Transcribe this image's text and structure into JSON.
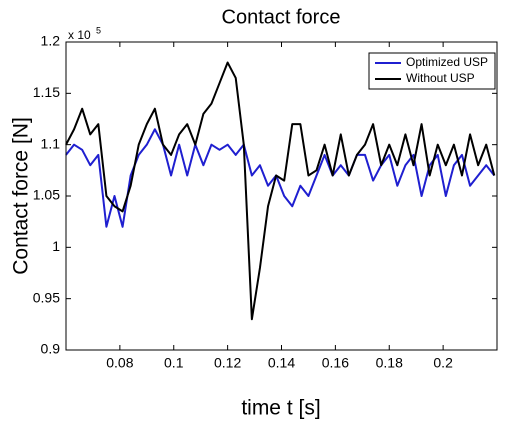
{
  "chart_data": {
    "type": "line",
    "title": "Contact force",
    "xlabel": "time t [s]",
    "ylabel": "Contact force [N]",
    "y_multiplier": "x 10",
    "y_multiplier_exponent": "5",
    "x": [
      0.06,
      0.063,
      0.066,
      0.069,
      0.072,
      0.075,
      0.078,
      0.081,
      0.084,
      0.087,
      0.09,
      0.093,
      0.096,
      0.099,
      0.102,
      0.105,
      0.108,
      0.111,
      0.114,
      0.117,
      0.12,
      0.123,
      0.126,
      0.129,
      0.132,
      0.135,
      0.138,
      0.141,
      0.144,
      0.147,
      0.15,
      0.153,
      0.156,
      0.159,
      0.162,
      0.165,
      0.168,
      0.171,
      0.174,
      0.177,
      0.18,
      0.183,
      0.186,
      0.189,
      0.192,
      0.195,
      0.198,
      0.201,
      0.204,
      0.207,
      0.21,
      0.213,
      0.216,
      0.219
    ],
    "series": [
      {
        "name": "Optimized USP",
        "color": "#1f1fd0",
        "values": [
          1.09,
          1.1,
          1.095,
          1.08,
          1.09,
          1.02,
          1.05,
          1.02,
          1.07,
          1.09,
          1.1,
          1.115,
          1.1,
          1.07,
          1.1,
          1.07,
          1.1,
          1.08,
          1.1,
          1.095,
          1.1,
          1.09,
          1.1,
          1.07,
          1.08,
          1.06,
          1.07,
          1.05,
          1.04,
          1.06,
          1.05,
          1.07,
          1.09,
          1.07,
          1.08,
          1.07,
          1.09,
          1.09,
          1.065,
          1.08,
          1.09,
          1.06,
          1.08,
          1.09,
          1.05,
          1.08,
          1.09,
          1.05,
          1.08,
          1.09,
          1.06,
          1.07,
          1.08,
          1.07
        ]
      },
      {
        "name": "Without USP",
        "color": "#000000",
        "values": [
          1.1,
          1.115,
          1.135,
          1.11,
          1.12,
          1.05,
          1.04,
          1.035,
          1.06,
          1.1,
          1.12,
          1.135,
          1.1,
          1.09,
          1.11,
          1.12,
          1.1,
          1.13,
          1.14,
          1.16,
          1.18,
          1.165,
          1.1,
          0.93,
          0.98,
          1.04,
          1.07,
          1.065,
          1.12,
          1.12,
          1.07,
          1.075,
          1.1,
          1.07,
          1.11,
          1.07,
          1.09,
          1.1,
          1.12,
          1.08,
          1.1,
          1.08,
          1.11,
          1.08,
          1.12,
          1.07,
          1.1,
          1.08,
          1.1,
          1.07,
          1.11,
          1.08,
          1.1,
          1.07
        ]
      }
    ],
    "xlim": [
      0.06,
      0.22
    ],
    "xticks": [
      0.08,
      0.1,
      0.12,
      0.14,
      0.16,
      0.18,
      0.2
    ],
    "ylim": [
      0.9,
      1.2
    ],
    "yticks": [
      0.9,
      0.95,
      1,
      1.05,
      1.1,
      1.15,
      1.2
    ],
    "grid": false,
    "legend": "northeast"
  }
}
